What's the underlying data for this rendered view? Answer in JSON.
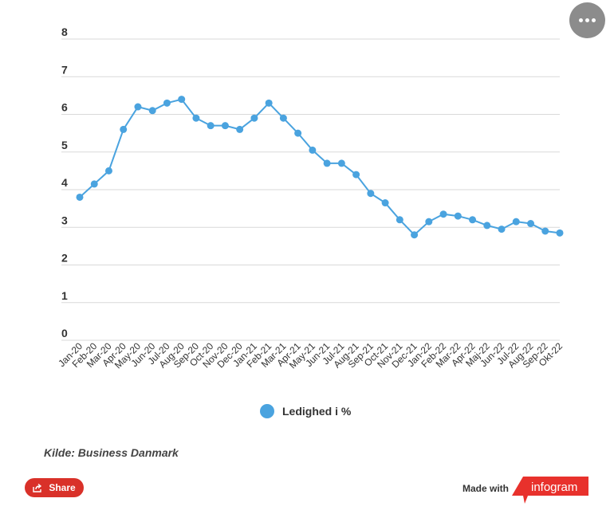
{
  "chart_data": {
    "type": "line",
    "categories": [
      "Jan-20",
      "Feb-20",
      "Mar-20",
      "Apr-20",
      "May-20",
      "Jun-20",
      "Jul-20",
      "Aug-20",
      "Sep-20",
      "Oct-20",
      "Nov-20",
      "Dec-20",
      "Jan-21",
      "Feb-21",
      "Mar-21",
      "Apr-21",
      "May-21",
      "Jun-21",
      "Jul-21",
      "Aug-21",
      "Sep-21",
      "Oct-21",
      "Nov-21",
      "Dec-21",
      "Jan-22",
      "Feb-22",
      "Mar-22",
      "Apr-22",
      "Maj-22",
      "Jun-22",
      "Jul-22",
      "Aug-22",
      "Sep-22",
      "Okt-22"
    ],
    "series": [
      {
        "name": "Ledighed i %",
        "color": "#4aa3df",
        "values": [
          3.8,
          4.15,
          4.5,
          5.6,
          6.2,
          6.1,
          6.3,
          6.4,
          5.9,
          5.7,
          5.7,
          5.6,
          5.9,
          6.3,
          5.9,
          5.5,
          5.05,
          4.7,
          4.7,
          4.4,
          3.9,
          3.65,
          3.2,
          2.8,
          3.15,
          3.35,
          3.3,
          3.2,
          3.05,
          2.95,
          3.15,
          3.1,
          2.9,
          2.85
        ]
      }
    ],
    "title": "",
    "xlabel": "",
    "ylabel": "",
    "ylim": [
      0,
      8
    ],
    "yticks": [
      0,
      1,
      2,
      3,
      4,
      5,
      6,
      7,
      8
    ],
    "grid": true,
    "legend": "bottom"
  },
  "legend": {
    "label": "Ledighed i %",
    "color": "#4aa3df"
  },
  "source": "Kilde: Business Danmark",
  "share_label": "Share",
  "made_with": "Made with",
  "brand": "infogram",
  "brand_color": "#e8312c",
  "share_color": "#d93129",
  "menu_icon": "more-dots-icon"
}
